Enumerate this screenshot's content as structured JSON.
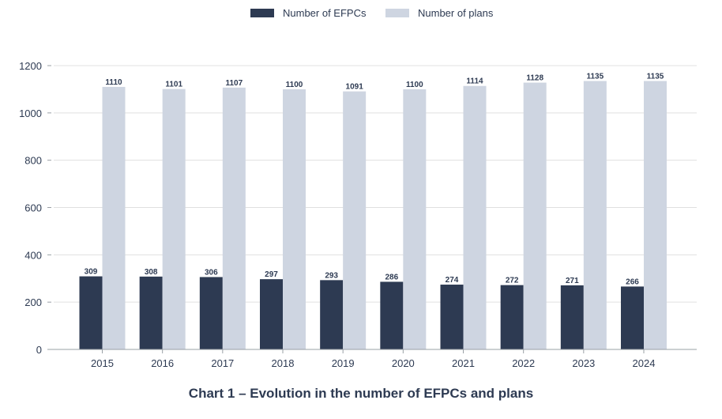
{
  "chart_data": {
    "type": "bar",
    "title": "Chart 1 – Evolution in the number of EFPCs and plans",
    "xlabel": "",
    "ylabel": "",
    "categories": [
      "2015",
      "2016",
      "2017",
      "2018",
      "2019",
      "2020",
      "2021",
      "2022",
      "2023",
      "2024"
    ],
    "series": [
      {
        "name": "Number of EFPCs",
        "color": "#2d3a52",
        "values": [
          309,
          308,
          306,
          297,
          293,
          286,
          274,
          272,
          271,
          266
        ]
      },
      {
        "name": "Number of plans",
        "color": "#ced5e1",
        "values": [
          1110,
          1101,
          1107,
          1100,
          1091,
          1100,
          1114,
          1128,
          1135,
          1135
        ]
      }
    ],
    "ylim": [
      0,
      1200
    ],
    "yticks": [
      0,
      200,
      400,
      600,
      800,
      1000,
      1200
    ],
    "grid": true,
    "legend_position": "top-center",
    "data_labels": true
  },
  "colors": {
    "text": "#2d3a52",
    "grid": "#e0e0e0",
    "axis": "#9aa0a6"
  }
}
